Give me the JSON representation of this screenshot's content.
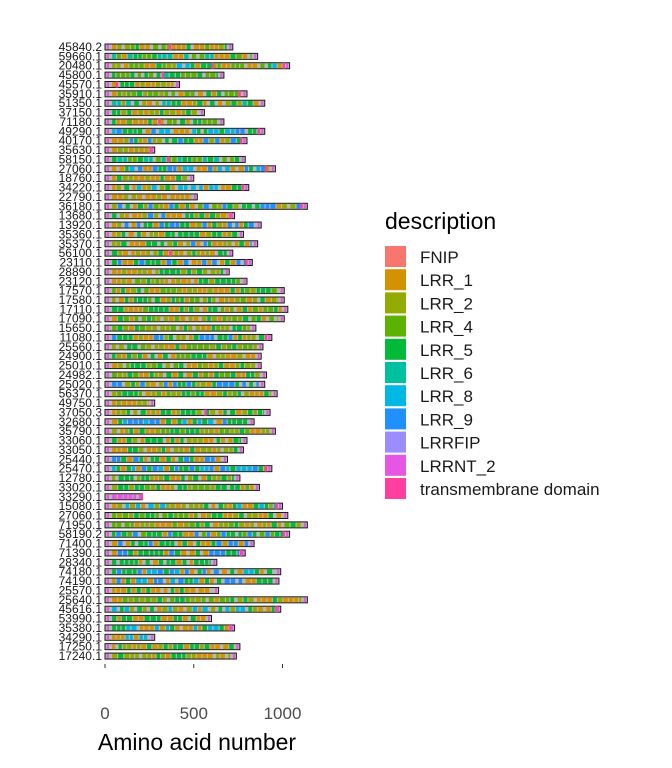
{
  "chart_data": {
    "type": "bar",
    "xlabel": "Amino acid number",
    "xlim": [
      0,
      1200
    ],
    "x_ticks": [
      0,
      500,
      1000
    ],
    "grid": false,
    "legend_placement": "right",
    "legend_title": "description",
    "domain_colors": {
      "FNIP": "#F8766D",
      "LRR_1": "#D39200",
      "LRR_2": "#93AA00",
      "LRR_4": "#5BB300",
      "LRR_5": "#00BA38",
      "LRR_6": "#00C19F",
      "LRR_8": "#00B9E3",
      "LRR_9": "#1E90FF",
      "LRRFIP": "#9B8CFF",
      "LRRNT_2": "#E755E3",
      "transmembrane domain": "#FF3F9F"
    },
    "legend": [
      "FNIP",
      "LRR_1",
      "LRR_2",
      "LRR_4",
      "LRR_5",
      "LRR_6",
      "LRR_8",
      "LRR_9",
      "LRRFIP",
      "LRRNT_2",
      "transmembrane domain"
    ],
    "proteins": [
      {
        "label": "45840.2",
        "length": 720,
        "mix": [
          "LRR_1",
          "LRR_5",
          "LRR_2",
          "LRR_4"
        ],
        "tm": [
          360
        ]
      },
      {
        "label": "59660.1",
        "length": 860,
        "mix": [
          "LRR_5",
          "LRR_1",
          "LRR_4",
          "LRR_6"
        ],
        "tm": []
      },
      {
        "label": "20480.1",
        "length": 1040,
        "mix": [
          "LRR_1",
          "LRR_5",
          "LRR_8",
          "LRR_2",
          "LRR_4"
        ],
        "tm": [
          600,
          1000
        ]
      },
      {
        "label": "45800.1",
        "length": 670,
        "mix": [
          "LRR_6",
          "LRR_5",
          "LRR_4"
        ],
        "tm": [
          320
        ]
      },
      {
        "label": "45570.1",
        "length": 420,
        "mix": [
          "LRR_1",
          "LRR_2",
          "LRR_5"
        ],
        "tm": [
          60,
          400
        ]
      },
      {
        "label": "35910.1",
        "length": 800,
        "mix": [
          "LRR_1",
          "LRR_5",
          "LRR_2",
          "LRR_4"
        ],
        "tm": [
          750
        ]
      },
      {
        "label": "51350.1",
        "length": 900,
        "mix": [
          "LRR_1",
          "LRR_2",
          "LRR_5",
          "LRR_6"
        ],
        "tm": []
      },
      {
        "label": "37150.1",
        "length": 560,
        "mix": [
          "LRR_2",
          "LRR_1",
          "LRR_5"
        ],
        "tm": []
      },
      {
        "label": "71180.1",
        "length": 670,
        "mix": [
          "LRR_1",
          "LRR_5",
          "LRR_4"
        ],
        "tm": [
          300
        ]
      },
      {
        "label": "49290.1",
        "length": 900,
        "mix": [
          "LRR_9",
          "LRR_8",
          "LRR_1",
          "LRR_5"
        ],
        "tm": [
          860
        ]
      },
      {
        "label": "40170.1",
        "length": 800,
        "mix": [
          "LRR_1",
          "LRR_5",
          "LRR_2",
          "LRR_9"
        ],
        "tm": [
          760
        ]
      },
      {
        "label": "35630.1",
        "length": 280,
        "mix": [
          "LRR_2",
          "LRR_1"
        ],
        "tm": [
          250
        ]
      },
      {
        "label": "58150.1",
        "length": 790,
        "mix": [
          "LRR_6",
          "LRR_5",
          "LRR_4"
        ],
        "tm": [
          350
        ]
      },
      {
        "label": "27060.1",
        "length": 960,
        "mix": [
          "LRR_5",
          "LRR_1",
          "LRR_9",
          "LRR_8"
        ],
        "tm": [
          900
        ]
      },
      {
        "label": "18760.1",
        "length": 500,
        "mix": [
          "LRR_1",
          "LRR_5",
          "LRR_2"
        ],
        "tm": []
      },
      {
        "label": "34220.1",
        "length": 810,
        "mix": [
          "LRR_1",
          "LRR_2",
          "LRR_5",
          "LRR_8"
        ],
        "tm": [
          770
        ]
      },
      {
        "label": "22790.1",
        "length": 520,
        "mix": [
          "LRR_2",
          "LRR_1"
        ],
        "tm": []
      },
      {
        "label": "36180.1",
        "length": 1140,
        "mix": [
          "LRR_1",
          "LRR_5",
          "LRR_9",
          "LRR_2",
          "LRR_4"
        ],
        "tm": [
          1100
        ]
      },
      {
        "label": "13680.1",
        "length": 730,
        "mix": [
          "LRR_1",
          "LRR_5",
          "LRR_2",
          "LRR_9"
        ],
        "tm": [
          700
        ]
      },
      {
        "label": "13920.1",
        "length": 880,
        "mix": [
          "LRR_1",
          "LRR_5",
          "LRR_2",
          "LRR_9"
        ],
        "tm": []
      },
      {
        "label": "35360.1",
        "length": 780,
        "mix": [
          "LRR_1",
          "LRR_5",
          "LRR_2"
        ],
        "tm": []
      },
      {
        "label": "35370.1",
        "length": 860,
        "mix": [
          "LRR_1",
          "LRR_5",
          "LRR_9",
          "LRR_2"
        ],
        "tm": []
      },
      {
        "label": "56100.1",
        "length": 720,
        "mix": [
          "LRR_1",
          "LRR_5",
          "LRR_2"
        ],
        "tm": [
          360
        ]
      },
      {
        "label": "23110.1",
        "length": 830,
        "mix": [
          "LRR_1",
          "LRR_5",
          "LRR_9"
        ],
        "tm": [
          790
        ]
      },
      {
        "label": "28890.1",
        "length": 700,
        "mix": [
          "LRR_1",
          "LRR_5",
          "LRR_2"
        ],
        "tm": []
      },
      {
        "label": "23120.1",
        "length": 800,
        "mix": [
          "LRR_1",
          "LRR_5",
          "LRR_2",
          "LRR_4"
        ],
        "tm": []
      },
      {
        "label": "17570.1",
        "length": 1010,
        "mix": [
          "LRR_1",
          "LRR_5",
          "LRR_2",
          "LRR_4"
        ],
        "tm": []
      },
      {
        "label": "17580.1",
        "length": 1010,
        "mix": [
          "LRR_1",
          "LRR_5",
          "LRR_2",
          "LRR_4"
        ],
        "tm": []
      },
      {
        "label": "17110.1",
        "length": 1030,
        "mix": [
          "LRR_1",
          "LRR_5",
          "LRR_2",
          "LRR_4"
        ],
        "tm": []
      },
      {
        "label": "17090.1",
        "length": 1010,
        "mix": [
          "LRR_1",
          "LRR_5",
          "LRR_2",
          "LRR_4"
        ],
        "tm": []
      },
      {
        "label": "15650.1",
        "length": 850,
        "mix": [
          "LRR_1",
          "LRR_5",
          "LRR_2",
          "LRR_4"
        ],
        "tm": []
      },
      {
        "label": "11080.1",
        "length": 940,
        "mix": [
          "LRR_1",
          "LRR_5",
          "LRR_2",
          "LRR_9"
        ],
        "tm": [
          900
        ]
      },
      {
        "label": "25560.1",
        "length": 890,
        "mix": [
          "LRR_1",
          "LRR_5",
          "LRR_2",
          "LRR_4"
        ],
        "tm": []
      },
      {
        "label": "24900.1",
        "length": 880,
        "mix": [
          "LRR_1",
          "LRR_5",
          "LRR_2",
          "LRR_4"
        ],
        "tm": []
      },
      {
        "label": "25010.1",
        "length": 880,
        "mix": [
          "LRR_1",
          "LRR_5",
          "LRR_2",
          "LRR_4"
        ],
        "tm": []
      },
      {
        "label": "24982.1",
        "length": 910,
        "mix": [
          "LRR_1",
          "LRR_5",
          "LRR_2",
          "LRR_4"
        ],
        "tm": []
      },
      {
        "label": "25020.1",
        "length": 900,
        "mix": [
          "LRR_1",
          "LRR_5",
          "LRR_2",
          "LRR_9"
        ],
        "tm": []
      },
      {
        "label": "56370.1",
        "length": 970,
        "mix": [
          "LRR_1",
          "LRR_5",
          "LRR_2",
          "LRR_4"
        ],
        "tm": []
      },
      {
        "label": "49750.1",
        "length": 280,
        "mix": [
          "LRR_1",
          "LRR_2"
        ],
        "tm": []
      },
      {
        "label": "37050.3",
        "length": 930,
        "mix": [
          "LRR_1",
          "LRR_5",
          "LRR_2"
        ],
        "tm": [
          560
        ]
      },
      {
        "label": "32680.1",
        "length": 840,
        "mix": [
          "LRR_5",
          "LRR_9",
          "LRR_8",
          "LRR_1"
        ],
        "tm": []
      },
      {
        "label": "35790.1",
        "length": 960,
        "mix": [
          "LRR_1",
          "LRR_5",
          "LRR_2",
          "LRR_4"
        ],
        "tm": []
      },
      {
        "label": "33060.1",
        "length": 800,
        "mix": [
          "LRR_1",
          "LRR_5",
          "LRR_2"
        ],
        "tm": []
      },
      {
        "label": "33050.1",
        "length": 780,
        "mix": [
          "LRR_1",
          "LRR_5",
          "LRR_2"
        ],
        "tm": []
      },
      {
        "label": "25440.1",
        "length": 690,
        "mix": [
          "LRR_9",
          "LRR_1",
          "LRR_5"
        ],
        "tm": []
      },
      {
        "label": "25470.1",
        "length": 940,
        "mix": [
          "LRR_9",
          "LRR_5",
          "LRR_1",
          "LRR_8"
        ],
        "tm": [
          900
        ]
      },
      {
        "label": "12780.1",
        "length": 760,
        "mix": [
          "LRR_1",
          "LRR_5",
          "LRR_2"
        ],
        "tm": []
      },
      {
        "label": "33020.1",
        "length": 870,
        "mix": [
          "LRR_1",
          "LRR_5",
          "LRR_2",
          "LRR_4"
        ],
        "tm": []
      },
      {
        "label": "33290.1",
        "length": 210,
        "mix": [
          "LRRNT_2"
        ],
        "tm": [
          200
        ]
      },
      {
        "label": "15080.1",
        "length": 1000,
        "mix": [
          "LRR_1",
          "LRR_5",
          "LRR_2",
          "LRR_8"
        ],
        "tm": [
          960
        ]
      },
      {
        "label": "27060.1",
        "length": 1030,
        "mix": [
          "LRR_1",
          "LRR_5",
          "LRR_2",
          "LRR_4"
        ],
        "tm": []
      },
      {
        "label": "71950.1",
        "length": 1140,
        "mix": [
          "LRR_1",
          "LRR_5",
          "LRR_4",
          "LRR_2"
        ],
        "tm": []
      },
      {
        "label": "58190.2",
        "length": 1040,
        "mix": [
          "LRR_1",
          "LRR_5",
          "LRR_4",
          "LRR_9"
        ],
        "tm": [
          1000
        ]
      },
      {
        "label": "71400.1",
        "length": 840,
        "mix": [
          "LRR_1",
          "LRR_5",
          "LRR_9"
        ],
        "tm": []
      },
      {
        "label": "71390.1",
        "length": 790,
        "mix": [
          "LRR_1",
          "LRR_5",
          "LRR_9"
        ],
        "tm": [
          760
        ]
      },
      {
        "label": "28340.1",
        "length": 630,
        "mix": [
          "LRR_1",
          "LRR_5"
        ],
        "tm": []
      },
      {
        "label": "74180.1",
        "length": 990,
        "mix": [
          "LRR_9",
          "LRR_1",
          "LRR_5",
          "LRR_8"
        ],
        "tm": []
      },
      {
        "label": "74190.1",
        "length": 980,
        "mix": [
          "LRR_9",
          "LRR_1",
          "LRR_5",
          "LRR_8"
        ],
        "tm": []
      },
      {
        "label": "25570.1",
        "length": 640,
        "mix": [
          "LRR_1",
          "LRR_5"
        ],
        "tm": []
      },
      {
        "label": "25640.1",
        "length": 1140,
        "mix": [
          "LRR_1",
          "LRR_5",
          "LRR_2",
          "LRR_4"
        ],
        "tm": []
      },
      {
        "label": "45616.1",
        "length": 990,
        "mix": [
          "LRR_1",
          "LRR_5",
          "LRR_2",
          "LRR_8"
        ],
        "tm": [
          960
        ]
      },
      {
        "label": "53990.1",
        "length": 600,
        "mix": [
          "LRR_1",
          "LRR_5"
        ],
        "tm": []
      },
      {
        "label": "35380.1",
        "length": 730,
        "mix": [
          "LRR_1",
          "LRR_5",
          "LRR_8"
        ],
        "tm": [
          700
        ]
      },
      {
        "label": "34290.1",
        "length": 280,
        "mix": [
          "LRR_1",
          "LRR_8"
        ],
        "tm": []
      },
      {
        "label": "17250.1",
        "length": 760,
        "mix": [
          "LRR_1",
          "LRR_5",
          "LRR_2"
        ],
        "tm": []
      },
      {
        "label": "17240.1",
        "length": 740,
        "mix": [
          "LRR_1",
          "LRR_5",
          "LRR_2"
        ],
        "tm": []
      }
    ]
  }
}
